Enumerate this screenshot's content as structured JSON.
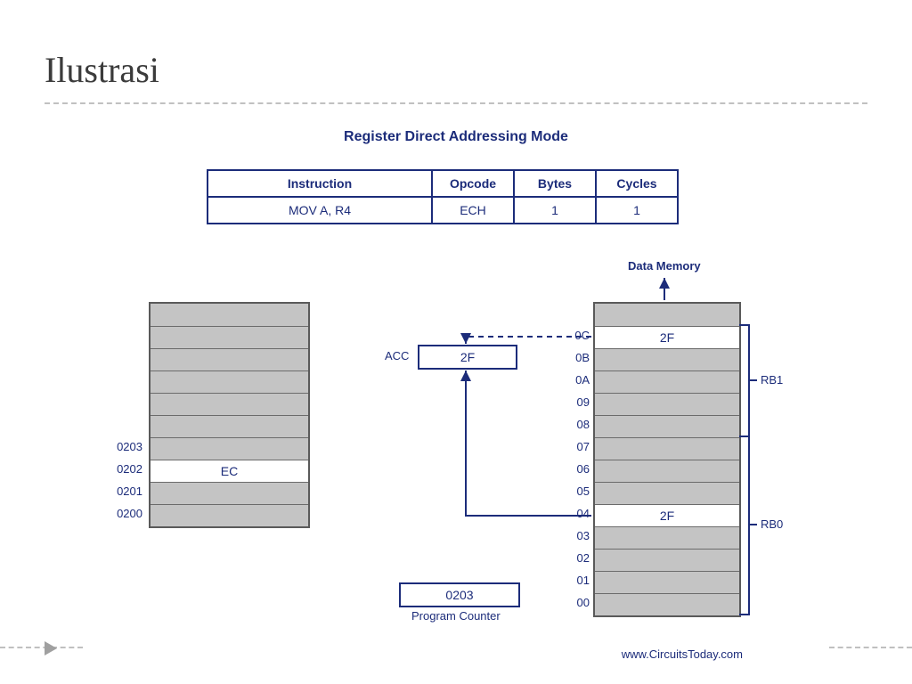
{
  "slide": {
    "title": "Ilustrasi"
  },
  "diagram": {
    "title": "Register Direct Addressing Mode",
    "credit": "www.CircuitsToday.com",
    "colors": {
      "ink": "#1c2c7a",
      "cell_gray": "#c4c4c4",
      "cell_border": "#6b6b6b",
      "block_border": "#5a5a5a",
      "white": "#ffffff"
    }
  },
  "table": {
    "headers": [
      "Instruction",
      "Opcode",
      "Bytes",
      "Cycles"
    ],
    "row": [
      "MOV A, R4",
      "ECH",
      "1",
      "1"
    ]
  },
  "progmem": {
    "rows": [
      {
        "addr": "",
        "val": "",
        "white": false
      },
      {
        "addr": "",
        "val": "",
        "white": false
      },
      {
        "addr": "",
        "val": "",
        "white": false
      },
      {
        "addr": "",
        "val": "",
        "white": false
      },
      {
        "addr": "",
        "val": "",
        "white": false
      },
      {
        "addr": "",
        "val": "",
        "white": false
      },
      {
        "addr": "0203",
        "val": "",
        "white": false
      },
      {
        "addr": "0202",
        "val": "EC",
        "white": true
      },
      {
        "addr": "0201",
        "val": "",
        "white": false
      },
      {
        "addr": "0200",
        "val": "",
        "white": false
      }
    ]
  },
  "acc": {
    "label": "ACC",
    "value": "2F"
  },
  "pc": {
    "label": "Program Counter",
    "value": "0203"
  },
  "datamem": {
    "title": "Data Memory",
    "rows": [
      {
        "addr": "",
        "val": "",
        "white": false
      },
      {
        "addr": "0C",
        "val": "2F",
        "white": true
      },
      {
        "addr": "0B",
        "val": "",
        "white": false
      },
      {
        "addr": "0A",
        "val": "",
        "white": false
      },
      {
        "addr": "09",
        "val": "",
        "white": false
      },
      {
        "addr": "08",
        "val": "",
        "white": false
      },
      {
        "addr": "07",
        "val": "",
        "white": false
      },
      {
        "addr": "06",
        "val": "",
        "white": false
      },
      {
        "addr": "05",
        "val": "",
        "white": false
      },
      {
        "addr": "04",
        "val": "2F",
        "white": true
      },
      {
        "addr": "03",
        "val": "",
        "white": false
      },
      {
        "addr": "02",
        "val": "",
        "white": false
      },
      {
        "addr": "01",
        "val": "",
        "white": false
      },
      {
        "addr": "00",
        "val": "",
        "white": false
      }
    ],
    "banks": [
      {
        "label": "RB1",
        "from": 1,
        "to": 5
      },
      {
        "label": "RB0",
        "from": 6,
        "to": 13
      }
    ]
  }
}
